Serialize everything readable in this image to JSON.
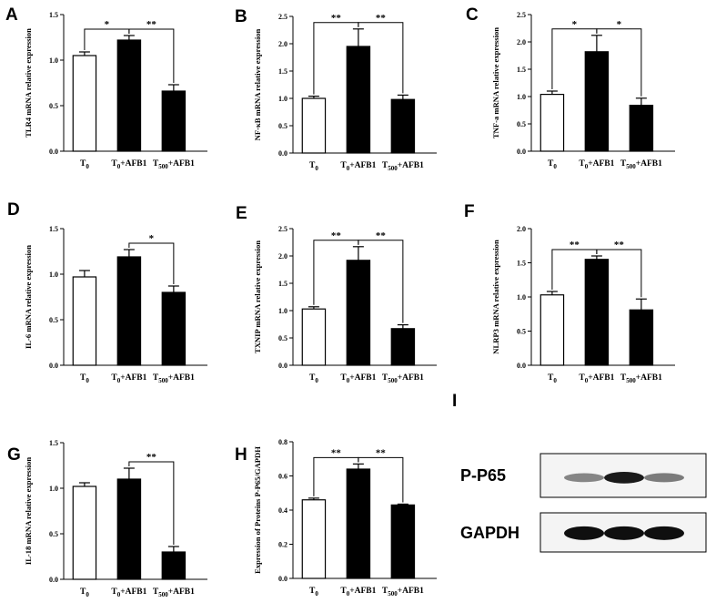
{
  "chart_data": [
    {
      "type": "bar",
      "panel": "A",
      "categories": [
        "T0",
        "T0+AFB1",
        "T500+AFB1"
      ],
      "values": [
        1.05,
        1.22,
        0.66
      ],
      "errors": [
        0.04,
        0.05,
        0.07
      ],
      "ylabel": "TLR4 mRNA relative expression",
      "ylim": [
        0,
        1.5
      ],
      "yticks": [
        "0.0",
        "0.5",
        "1.0",
        "1.5"
      ],
      "significance": [
        {
          "from": 0,
          "to": 1,
          "label": "*"
        },
        {
          "from": 1,
          "to": 2,
          "label": "**"
        }
      ]
    },
    {
      "type": "bar",
      "panel": "B",
      "categories": [
        "T0",
        "T0+AFB1",
        "T500+AFB1"
      ],
      "values": [
        1.0,
        1.95,
        0.98
      ],
      "errors": [
        0.04,
        0.32,
        0.08
      ],
      "ylabel": "NF-κB mRNA relative expression",
      "ylim": [
        0,
        2.5
      ],
      "yticks": [
        "0.0",
        "0.5",
        "1.0",
        "1.5",
        "2.0",
        "2.5"
      ],
      "significance": [
        {
          "from": 0,
          "to": 1,
          "label": "**"
        },
        {
          "from": 1,
          "to": 2,
          "label": "**"
        }
      ]
    },
    {
      "type": "bar",
      "panel": "C",
      "categories": [
        "T0",
        "T0+AFB1",
        "T500+AFB1"
      ],
      "values": [
        1.04,
        1.82,
        0.84
      ],
      "errors": [
        0.06,
        0.3,
        0.13
      ],
      "ylabel": "TNF-a mRNA relative expression",
      "ylim": [
        0,
        2.5
      ],
      "yticks": [
        "0.0",
        "0.5",
        "1.0",
        "1.5",
        "2.0",
        "2.5"
      ],
      "significance": [
        {
          "from": 0,
          "to": 1,
          "label": "*"
        },
        {
          "from": 1,
          "to": 2,
          "label": "*"
        }
      ]
    },
    {
      "type": "bar",
      "panel": "D",
      "categories": [
        "T0",
        "T0+AFB1",
        "T500+AFB1"
      ],
      "values": [
        0.97,
        1.19,
        0.8
      ],
      "errors": [
        0.07,
        0.08,
        0.07
      ],
      "ylabel": "IL-6 mRNA relative expression",
      "ylim": [
        0,
        1.5
      ],
      "yticks": [
        "0.0",
        "0.5",
        "1.0",
        "1.5"
      ],
      "significance": [
        {
          "from": 1,
          "to": 2,
          "label": "*"
        }
      ]
    },
    {
      "type": "bar",
      "panel": "E",
      "categories": [
        "T0",
        "T0+AFB1",
        "T500+AFB1"
      ],
      "values": [
        1.03,
        1.92,
        0.67
      ],
      "errors": [
        0.04,
        0.25,
        0.07
      ],
      "ylabel": "TXNIP mRNA relative expression",
      "ylim": [
        0,
        2.5
      ],
      "yticks": [
        "0.0",
        "0.5",
        "1.0",
        "1.5",
        "2.0",
        "2.5"
      ],
      "significance": [
        {
          "from": 0,
          "to": 1,
          "label": "**"
        },
        {
          "from": 1,
          "to": 2,
          "label": "**"
        }
      ]
    },
    {
      "type": "bar",
      "panel": "F",
      "categories": [
        "T0",
        "T0+AFB1",
        "T500+AFB1"
      ],
      "values": [
        1.03,
        1.55,
        0.81
      ],
      "errors": [
        0.05,
        0.05,
        0.16
      ],
      "ylabel": "NLRP3 mRNA relative expression",
      "ylim": [
        0,
        2.0
      ],
      "yticks": [
        "0.0",
        "0.5",
        "1.0",
        "1.5",
        "2.0"
      ],
      "significance": [
        {
          "from": 0,
          "to": 1,
          "label": "**"
        },
        {
          "from": 1,
          "to": 2,
          "label": "**"
        }
      ]
    },
    {
      "type": "bar",
      "panel": "G",
      "categories": [
        "T0",
        "T0+AFB1",
        "T500+AFB1"
      ],
      "values": [
        1.02,
        1.1,
        0.3
      ],
      "errors": [
        0.04,
        0.12,
        0.06
      ],
      "ylabel": "IL-18 mRNA relative expression",
      "ylim": [
        0,
        1.5
      ],
      "yticks": [
        "0.0",
        "0.5",
        "1.0",
        "1.5"
      ],
      "significance": [
        {
          "from": 1,
          "to": 2,
          "label": "**"
        }
      ]
    },
    {
      "type": "bar",
      "panel": "H",
      "categories": [
        "T0",
        "T0+AFB1",
        "T500+AFB1"
      ],
      "values": [
        0.46,
        0.64,
        0.43
      ],
      "errors": [
        0.01,
        0.03,
        0.005
      ],
      "ylabel": "Expression of Proteins P-P65/GAPDH",
      "ylim": [
        0,
        0.8
      ],
      "yticks": [
        "0.0",
        "0.2",
        "0.4",
        "0.6",
        "0.8"
      ],
      "significance": [
        {
          "from": 0,
          "to": 1,
          "label": "**"
        },
        {
          "from": 1,
          "to": 2,
          "label": "**"
        }
      ]
    }
  ],
  "category_display": [
    {
      "main": "T",
      "sub": "0",
      "rest": ""
    },
    {
      "main": "T",
      "sub": "0",
      "rest": "+AFB1"
    },
    {
      "main": "T",
      "sub": "500",
      "rest": "+AFB1"
    }
  ],
  "bar_colors": [
    "#ffffff",
    "#000000",
    "#000000"
  ],
  "blot": {
    "panel": "I",
    "rows": [
      {
        "label": "P-P65",
        "band_intensity": [
          0.45,
          0.95,
          0.5
        ]
      },
      {
        "label": "GAPDH",
        "band_intensity": [
          1.0,
          1.0,
          1.0
        ]
      }
    ]
  }
}
